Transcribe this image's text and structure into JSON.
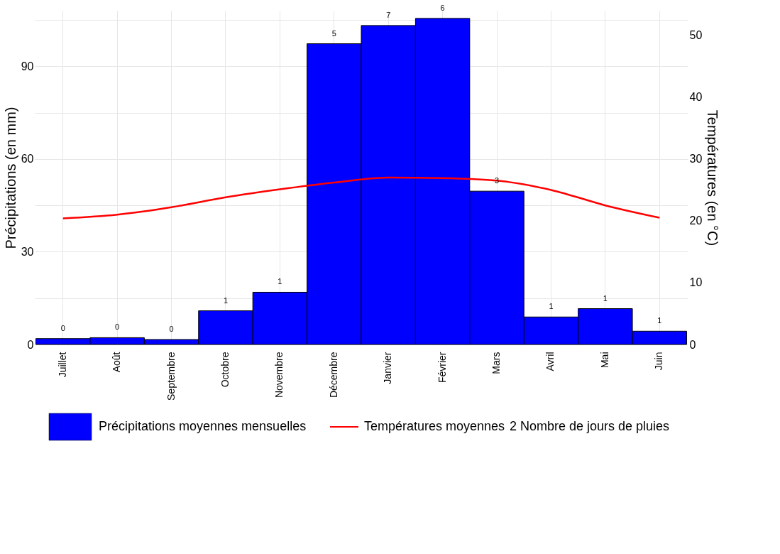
{
  "chart_data": {
    "type": "bar",
    "categories": [
      "Juillet",
      "Août",
      "Septembre",
      "Octobre",
      "Novembre",
      "Décembre",
      "Janvier",
      "Février",
      "Mars",
      "Avril",
      "Mai",
      "Juin"
    ],
    "ylabel": "Précipitations (en mm)",
    "y2label": "Températures (en °C)",
    "series": [
      {
        "name": "Précipitations moyennes mensuelles",
        "color": "#0000ff",
        "values": [
          1.9,
          2.2,
          1.6,
          10.9,
          16.9,
          97.3,
          103.2,
          105.5,
          49.6,
          8.9,
          11.6,
          4.3
        ]
      },
      {
        "name": "Températures moyennes",
        "type": "line",
        "axis": "y2",
        "color": "#ff0000",
        "values": [
          20.4,
          21.0,
          22.2,
          23.8,
          25.1,
          26.2,
          27.0,
          26.9,
          26.5,
          25.0,
          22.5,
          20.5
        ]
      }
    ],
    "ylim": [
      0,
      108
    ],
    "yticks": [
      0,
      {
        "value": 15,
        "label": null
      },
      30,
      {
        "value": 45,
        "label": null
      },
      60,
      {
        "value": 75,
        "label": null
      },
      90,
      {
        "value": 105,
        "label": null
      }
    ],
    "y2lim": [
      0,
      54
    ],
    "y2ticks": [
      0,
      10,
      20,
      30,
      40,
      50
    ],
    "annotations": [
      {
        "text": "0",
        "x": "Juillet",
        "y": 1.9
      },
      {
        "text": "0",
        "x": "Août",
        "y": 2.2
      },
      {
        "text": "0",
        "x": "Septembre",
        "y": 1.6
      },
      {
        "text": "1",
        "x": "Octobre",
        "y": 10.9
      },
      {
        "text": "1",
        "x": "Novembre",
        "y": 16.9
      },
      {
        "text": "5",
        "x": "Décembre",
        "y": 97.3
      },
      {
        "text": "7",
        "x": "Janvier",
        "y": 103.2
      },
      {
        "text": "6",
        "x": "Février",
        "y": 105.5
      },
      {
        "text": "3",
        "x": "Mars",
        "y": 49.6
      },
      {
        "text": "1",
        "x": "Avril",
        "y": 8.9
      },
      {
        "text": "1",
        "x": "Mai",
        "y": 11.6
      },
      {
        "text": "1",
        "x": "Juin",
        "y": 4.3
      },
      "2 Nombre de jours de pluies"
    ],
    "grid": true,
    "legend": "bottom"
  }
}
